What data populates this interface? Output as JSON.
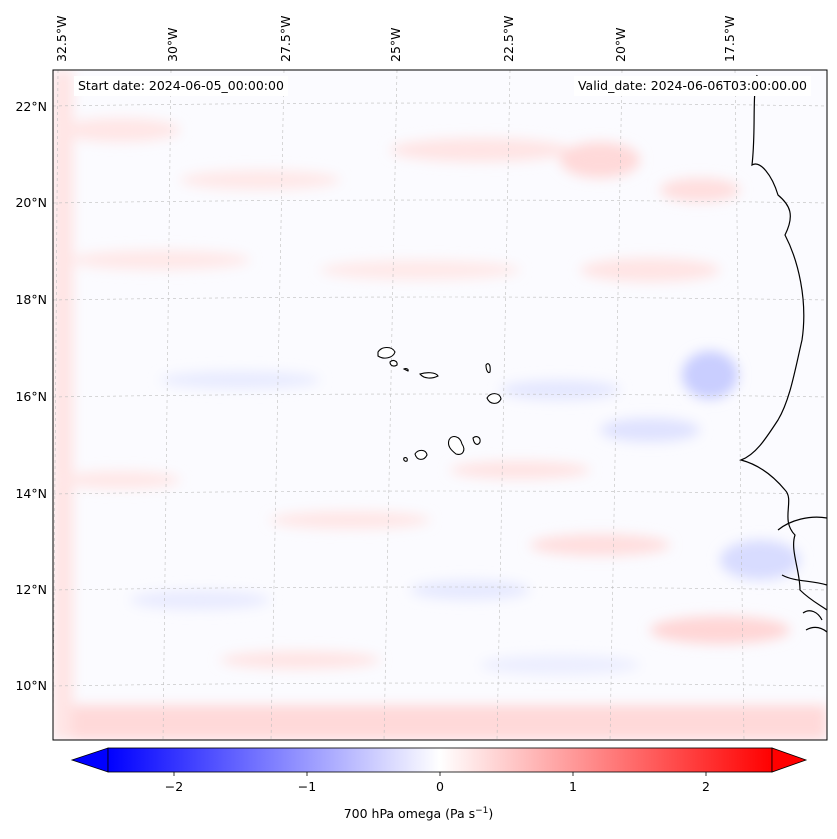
{
  "map": {
    "start_date": "Start date: 2024-06-05_00:00:00",
    "valid_date": "Valid_date: 2024-06-06T03:00:00.00",
    "lon_labels": [
      "32.5°W",
      "30°W",
      "27.5°W",
      "25°W",
      "22.5°W",
      "20°W",
      "17.5°W"
    ],
    "lat_labels": [
      "22°N",
      "20°N",
      "18°N",
      "16°N",
      "14°N",
      "12°N",
      "10°N"
    ]
  },
  "colorbar": {
    "ticks": [
      "−2",
      "−1",
      "0",
      "1",
      "2"
    ],
    "tick_values": [
      -2,
      -1,
      0,
      1,
      2
    ],
    "range": [
      -2.5,
      2.5
    ],
    "label_prefix": "700 hPa omega (Pa s",
    "label_exp": "−1",
    "label_suffix": ")",
    "cmap": "bwr",
    "colors": {
      "negative": "#0000ff",
      "zero": "#ffffff",
      "positive": "#ff0000"
    }
  }
}
